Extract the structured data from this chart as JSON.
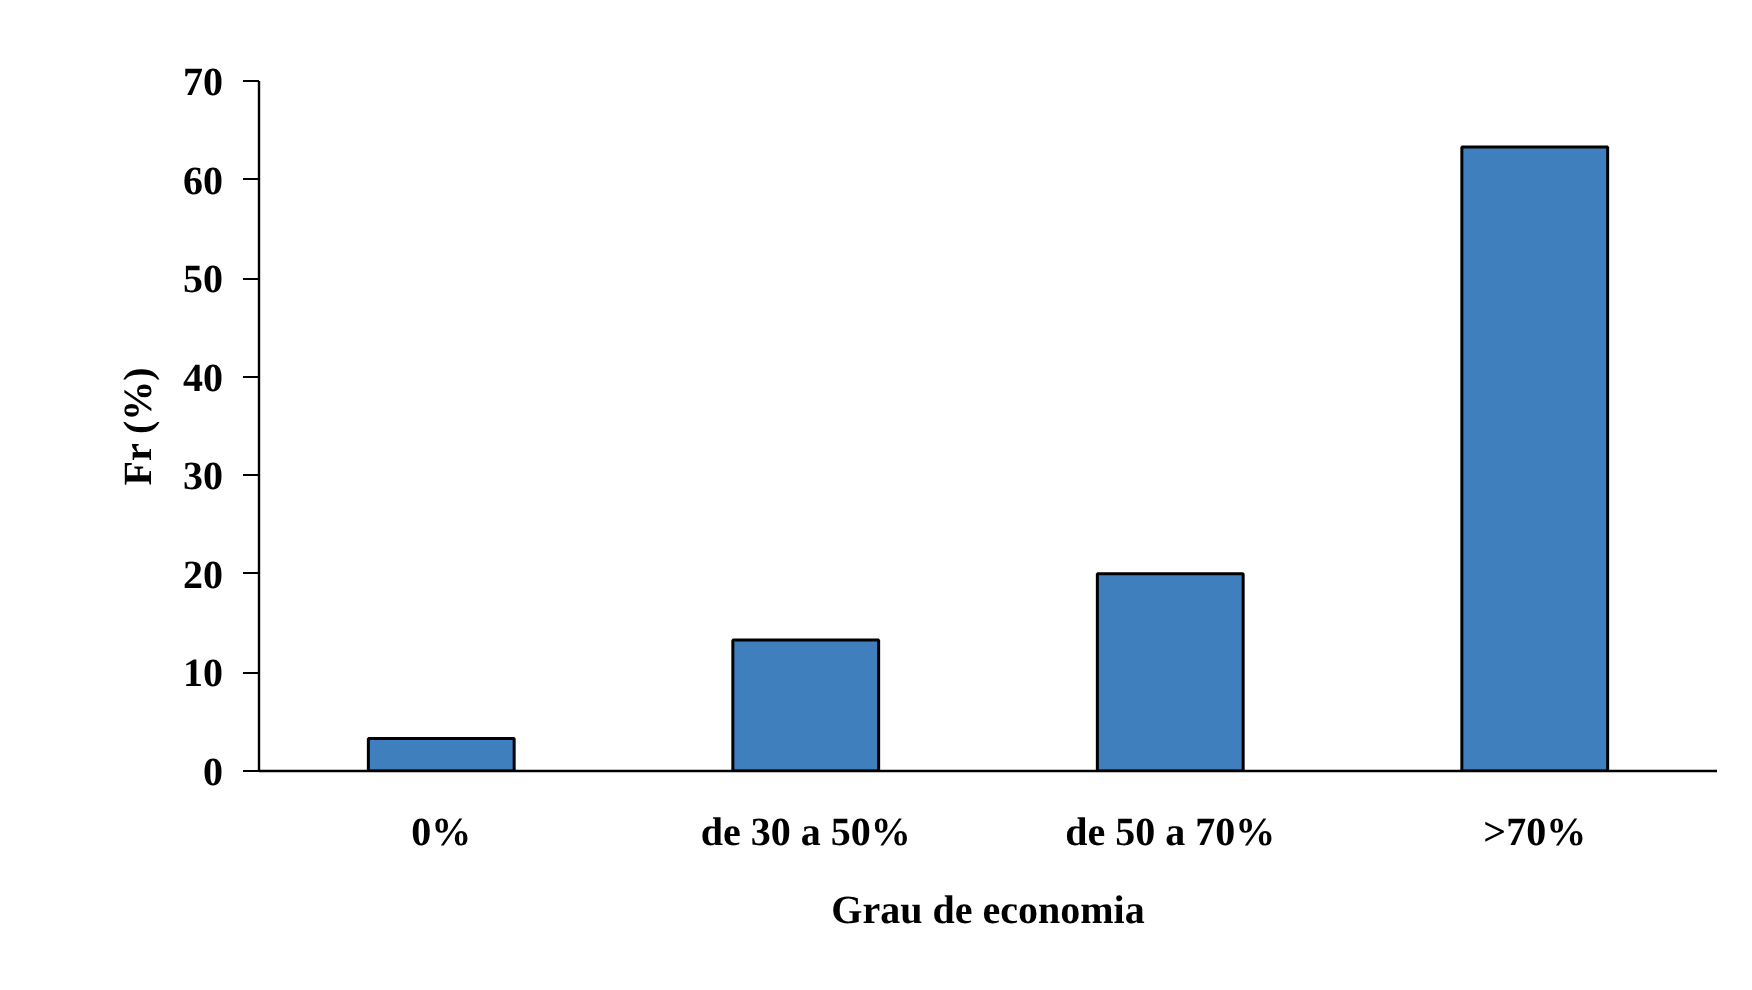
{
  "chart_data": {
    "type": "bar",
    "xlabel": "Grau de economia",
    "ylabel": "Fr (%)",
    "categories": [
      "0%",
      "de 30 a 50%",
      "de 50 a 70%",
      ">70%"
    ],
    "values": [
      3.3,
      13.3,
      20,
      63.3
    ],
    "color": "#3f7fbe",
    "ylim": [
      0,
      70
    ],
    "yticks": [
      0,
      10,
      20,
      30,
      40,
      50,
      60,
      70
    ]
  }
}
